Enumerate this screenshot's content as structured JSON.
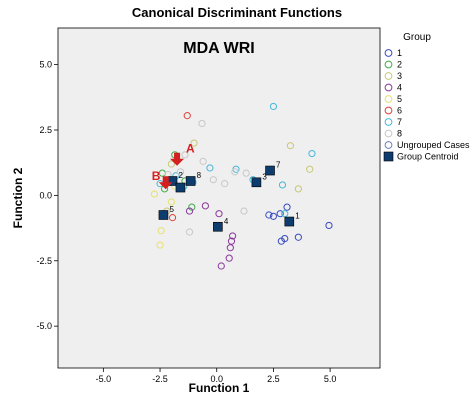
{
  "chart_data": {
    "type": "scatter",
    "title": "Canonical Discriminant Functions",
    "annotation": "MDA WRI",
    "xlabel": "Function 1",
    "ylabel": "Function 2",
    "xlim": [
      -7,
      7.2
    ],
    "ylim": [
      -6.6,
      6.4
    ],
    "xticks": [
      -5.0,
      -2.5,
      0.0,
      2.5,
      5.0
    ],
    "yticks": [
      5.0,
      2.5,
      0.0,
      -2.5,
      -5.0
    ],
    "xtick_labels": [
      "-5.0",
      "-2.5",
      "0.0",
      "2.5",
      "5.0"
    ],
    "ytick_labels": [
      "5.0",
      "2.5",
      "0.0",
      "-2.5",
      "-5.0"
    ],
    "grid": false,
    "legend_title": "Group",
    "legend_position": "right",
    "legend": [
      {
        "label": "1",
        "color": "#3b4cc0",
        "marker": "circle"
      },
      {
        "label": "2",
        "color": "#3fae49",
        "marker": "circle"
      },
      {
        "label": "3",
        "color": "#c8c878",
        "marker": "circle"
      },
      {
        "label": "4",
        "color": "#8b3a9e",
        "marker": "circle"
      },
      {
        "label": "5",
        "color": "#e8e070",
        "marker": "circle"
      },
      {
        "label": "6",
        "color": "#e0403a",
        "marker": "circle"
      },
      {
        "label": "7",
        "color": "#48b8d8",
        "marker": "circle"
      },
      {
        "label": "8",
        "color": "#c8c8c8",
        "marker": "circle"
      },
      {
        "label": "Ungrouped Cases",
        "color": "#7080b8",
        "marker": "circle"
      },
      {
        "label": "Group Centroid",
        "color": "#0d3c6e",
        "marker": "square"
      }
    ],
    "series": [
      {
        "group": "1",
        "color": "#3b4cc0",
        "points": [
          [
            2.3,
            -0.75
          ],
          [
            2.5,
            -0.8
          ],
          [
            2.8,
            -0.7
          ],
          [
            2.85,
            -1.75
          ],
          [
            3.0,
            -1.65
          ],
          [
            3.6,
            -1.6
          ],
          [
            4.95,
            -1.15
          ],
          [
            3.1,
            -0.45
          ]
        ]
      },
      {
        "group": "2",
        "color": "#3fae49",
        "points": [
          [
            -2.4,
            0.85
          ],
          [
            -2.05,
            0.5
          ],
          [
            -1.85,
            1.55
          ],
          [
            -1.4,
            0.55
          ],
          [
            -1.1,
            -0.45
          ],
          [
            -2.3,
            0.25
          ]
        ]
      },
      {
        "group": "3",
        "color": "#c8c878",
        "points": [
          [
            -1.0,
            2.0
          ],
          [
            3.25,
            1.9
          ],
          [
            3.6,
            0.25
          ],
          [
            4.1,
            1.0
          ],
          [
            -2.2,
            -0.6
          ],
          [
            -2.0,
            1.2
          ]
        ]
      },
      {
        "group": "4",
        "color": "#8b3a9e",
        "points": [
          [
            -0.5,
            -0.4
          ],
          [
            0.1,
            -0.7
          ],
          [
            0.7,
            -1.55
          ],
          [
            0.65,
            -1.75
          ],
          [
            0.6,
            -2.0
          ],
          [
            0.55,
            -2.4
          ],
          [
            0.2,
            -2.7
          ],
          [
            -1.2,
            -0.6
          ]
        ]
      },
      {
        "group": "5",
        "color": "#e8e070",
        "points": [
          [
            -2.5,
            -1.9
          ],
          [
            -2.45,
            -1.35
          ],
          [
            -2.0,
            -0.25
          ],
          [
            -1.85,
            0.35
          ],
          [
            -2.75,
            0.05
          ]
        ]
      },
      {
        "group": "6",
        "color": "#e0403a",
        "points": [
          [
            -1.3,
            3.05
          ],
          [
            -2.35,
            -0.7
          ],
          [
            -1.95,
            -0.85
          ]
        ]
      },
      {
        "group": "7",
        "color": "#48b8d8",
        "points": [
          [
            2.5,
            3.4
          ],
          [
            2.9,
            0.4
          ],
          [
            4.2,
            1.6
          ],
          [
            -0.3,
            1.05
          ],
          [
            -1.45,
            0.35
          ],
          [
            -2.5,
            0.45
          ],
          [
            -1.05,
            0.5
          ],
          [
            3.0,
            -0.7
          ],
          [
            -1.8,
            0.75
          ],
          [
            1.6,
            0.6
          ],
          [
            0.85,
            1.0
          ]
        ]
      },
      {
        "group": "8",
        "color": "#c8c8c8",
        "points": [
          [
            -0.65,
            2.75
          ],
          [
            -0.6,
            1.3
          ],
          [
            -1.4,
            1.55
          ],
          [
            -1.2,
            -1.4
          ],
          [
            -0.15,
            0.6
          ],
          [
            0.35,
            0.45
          ],
          [
            1.3,
            0.85
          ],
          [
            1.2,
            -0.6
          ],
          [
            0.8,
            0.9
          ],
          [
            -1.6,
            0.9
          ],
          [
            -2.15,
            0.8
          ]
        ]
      }
    ],
    "centroids": [
      {
        "group": "1",
        "x": 3.2,
        "y": -1.0
      },
      {
        "group": "2",
        "x": -1.95,
        "y": 0.55
      },
      {
        "group": "3",
        "x": 1.75,
        "y": 0.5
      },
      {
        "group": "4",
        "x": 0.05,
        "y": -1.2
      },
      {
        "group": "5",
        "x": -2.35,
        "y": -0.75
      },
      {
        "group": "6",
        "x": -1.6,
        "y": 0.3
      },
      {
        "group": "7",
        "x": 2.35,
        "y": 0.95
      },
      {
        "group": "8",
        "x": -1.15,
        "y": 0.55
      }
    ],
    "markers": [
      {
        "label": "A",
        "x": -1.75,
        "y": 1.25,
        "color": "#d42020"
      },
      {
        "label": "B",
        "x": -2.25,
        "y": 0.35,
        "color": "#d42020"
      }
    ]
  }
}
